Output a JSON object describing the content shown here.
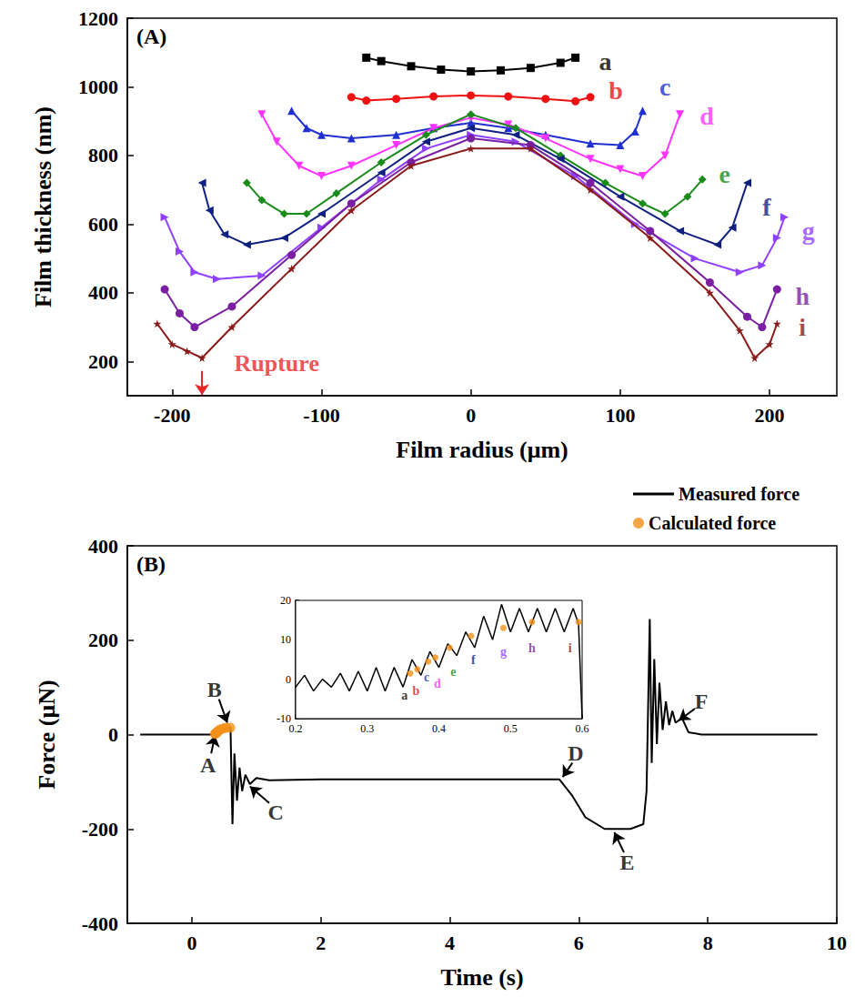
{
  "chart_data": [
    {
      "type": "line",
      "panel_label": "(A)",
      "x_label": "Film radius (μm)",
      "y_label": "Film thickness (nm)",
      "xlim": [
        -230,
        245
      ],
      "xticks": [
        -200,
        -100,
        0,
        100,
        200
      ],
      "ylim": [
        100,
        1200
      ],
      "yticks": [
        200,
        400,
        600,
        800,
        1000,
        1200
      ],
      "grid": false,
      "series": [
        {
          "name": "a",
          "color": "#000000",
          "marker": "square",
          "line_style": "solid",
          "x": [
            -70,
            -60,
            -40,
            -20,
            0,
            20,
            40,
            60,
            70
          ],
          "values": [
            1085,
            1075,
            1060,
            1050,
            1045,
            1048,
            1055,
            1070,
            1085
          ],
          "label_position": [
            90,
            1075
          ]
        },
        {
          "name": "b",
          "color": "#ee1111",
          "marker": "circle",
          "line_style": "solid",
          "x": [
            -80,
            -70,
            -50,
            -25,
            0,
            25,
            50,
            70,
            80
          ],
          "values": [
            970,
            960,
            965,
            972,
            975,
            972,
            965,
            958,
            970
          ],
          "label_position": [
            97,
            990
          ]
        },
        {
          "name": "c",
          "color": "#2030d0",
          "marker": "triangle",
          "line_style": "solid",
          "x": [
            -120,
            -110,
            -100,
            -80,
            -50,
            -25,
            0,
            25,
            50,
            80,
            100,
            110,
            115
          ],
          "values": [
            930,
            880,
            860,
            850,
            860,
            880,
            895,
            880,
            860,
            835,
            830,
            870,
            930
          ],
          "label_position": [
            130,
            1000
          ]
        },
        {
          "name": "d",
          "color": "#ff33ff",
          "marker": "triangle-down",
          "line_style": "solid",
          "x": [
            -140,
            -130,
            -115,
            -100,
            -80,
            -50,
            -25,
            0,
            25,
            50,
            80,
            100,
            115,
            130,
            140
          ],
          "values": [
            920,
            840,
            770,
            740,
            770,
            830,
            880,
            910,
            890,
            850,
            790,
            760,
            740,
            800,
            920
          ],
          "label_position": [
            158,
            915
          ]
        },
        {
          "name": "e",
          "color": "#1a8a1a",
          "marker": "diamond",
          "line_style": "solid",
          "x": [
            -150,
            -140,
            -125,
            -110,
            -90,
            -60,
            -30,
            0,
            30,
            60,
            90,
            115,
            130,
            145,
            155
          ],
          "values": [
            720,
            670,
            630,
            630,
            690,
            780,
            860,
            920,
            880,
            800,
            720,
            660,
            630,
            680,
            730
          ],
          "label_position": [
            170,
            745
          ]
        },
        {
          "name": "f",
          "color": "#102080",
          "marker": "triangle-left",
          "line_style": "solid",
          "x": [
            -180,
            -175,
            -165,
            -150,
            -125,
            -100,
            -60,
            -30,
            0,
            30,
            60,
            100,
            140,
            165,
            175,
            185
          ],
          "values": [
            720,
            640,
            570,
            540,
            560,
            630,
            750,
            840,
            880,
            860,
            790,
            680,
            580,
            540,
            590,
            720
          ],
          "label_position": [
            198,
            650
          ]
        },
        {
          "name": "g",
          "color": "#9040ff",
          "marker": "triangle-right",
          "line_style": "solid",
          "x": [
            -205,
            -195,
            -185,
            -170,
            -140,
            -100,
            -60,
            -30,
            0,
            30,
            70,
            110,
            150,
            180,
            195,
            205,
            210
          ],
          "values": [
            620,
            520,
            460,
            440,
            450,
            590,
            730,
            820,
            860,
            840,
            740,
            600,
            500,
            460,
            480,
            560,
            620
          ],
          "label_position": [
            226,
            580
          ]
        },
        {
          "name": "h",
          "color": "#7b1fa2",
          "marker": "circle",
          "line_style": "solid",
          "x": [
            -205,
            -195,
            -185,
            -160,
            -120,
            -80,
            -40,
            0,
            40,
            80,
            120,
            160,
            185,
            195,
            205
          ],
          "values": [
            410,
            340,
            300,
            360,
            510,
            660,
            780,
            850,
            830,
            720,
            580,
            430,
            330,
            300,
            410
          ],
          "label_position": [
            222,
            390
          ]
        },
        {
          "name": "i",
          "color": "#8b1a1a",
          "marker": "star",
          "line_style": "solid",
          "x": [
            -210,
            -200,
            -190,
            -180,
            -160,
            -120,
            -80,
            -40,
            0,
            40,
            80,
            120,
            160,
            180,
            190,
            200,
            205
          ],
          "values": [
            310,
            250,
            230,
            210,
            300,
            470,
            640,
            770,
            820,
            820,
            700,
            560,
            400,
            290,
            210,
            250,
            310
          ],
          "label_position": [
            222,
            300
          ]
        }
      ],
      "annotations": [
        {
          "text": "Rupture",
          "color": "#e8262a",
          "x": -130,
          "y": 195,
          "arrow_from": [
            -180,
            172
          ],
          "arrow_to": [
            -180,
            102
          ]
        }
      ]
    },
    {
      "type": "line",
      "panel_label": "(B)",
      "x_label": "Time (s)",
      "y_label": "Force (μN)",
      "xlim": [
        -1,
        10
      ],
      "xticks": [
        0,
        2,
        4,
        6,
        8,
        10
      ],
      "ylim": [
        -400,
        400
      ],
      "yticks": [
        -400,
        -200,
        0,
        200,
        400
      ],
      "grid": false,
      "legend": "top-right",
      "series": [
        {
          "name": "Measured force",
          "type": "line",
          "color": "#000000",
          "line_style": "solid",
          "x": [
            -0.8,
            0,
            0.3,
            0.4,
            0.5,
            0.6,
            0.61,
            0.63,
            0.66,
            0.7,
            0.74,
            0.78,
            0.83,
            0.9,
            1.0,
            1.2,
            2,
            4,
            5.7,
            5.9,
            6.1,
            6.4,
            6.8,
            7.0,
            7.05,
            7.1,
            7.13,
            7.17,
            7.21,
            7.25,
            7.3,
            7.35,
            7.4,
            7.45,
            7.5,
            7.6,
            7.7,
            7.9,
            9.7
          ],
          "values": [
            0,
            0,
            0,
            3,
            10,
            15,
            -60,
            -190,
            -40,
            -140,
            -70,
            -120,
            -85,
            -105,
            -92,
            -97,
            -95,
            -95,
            -95,
            -130,
            -175,
            -200,
            -200,
            -190,
            -120,
            245,
            -60,
            160,
            -20,
            110,
            10,
            70,
            20,
            50,
            25,
            35,
            5,
            0,
            0
          ]
        },
        {
          "name": "Calculated force",
          "type": "scatter",
          "color": "#f39019",
          "marker": "circle",
          "x": [
            0.36,
            0.37,
            0.385,
            0.395,
            0.415,
            0.445,
            0.49,
            0.53,
            0.595
          ],
          "values": [
            1.5,
            2.5,
            4.5,
            5.5,
            8,
            11,
            13,
            14.5,
            14.5
          ]
        }
      ],
      "annotations": [
        {
          "text": "A",
          "x": 0.25,
          "y": -65,
          "arrow_from": [
            0.3,
            -40
          ],
          "arrow_to": [
            0.36,
            -2
          ]
        },
        {
          "text": "B",
          "x": 0.35,
          "y": 95,
          "arrow_from": [
            0.42,
            75
          ],
          "arrow_to": [
            0.55,
            25
          ]
        },
        {
          "text": "C",
          "x": 1.3,
          "y": -165,
          "arrow_from": [
            1.2,
            -145
          ],
          "arrow_to": [
            0.9,
            -110
          ]
        },
        {
          "text": "D",
          "x": 5.95,
          "y": -40,
          "arrow_from": [
            5.9,
            -60
          ],
          "arrow_to": [
            5.75,
            -90
          ]
        },
        {
          "text": "E",
          "x": 6.75,
          "y": -270,
          "arrow_from": [
            6.7,
            -250
          ],
          "arrow_to": [
            6.55,
            -207
          ]
        },
        {
          "text": "F",
          "x": 7.9,
          "y": 70,
          "arrow_from": [
            7.8,
            55
          ],
          "arrow_to": [
            7.55,
            30
          ]
        }
      ]
    },
    {
      "type": "line",
      "xlim": [
        0.2,
        0.6
      ],
      "xticks": [
        0.2,
        0.3,
        0.4,
        0.5,
        0.6
      ],
      "ylim": [
        -10,
        20
      ],
      "yticks": [
        -10,
        0,
        10,
        20
      ],
      "grid": false,
      "series": [
        {
          "name": "Measured force",
          "type": "line",
          "color": "#000000",
          "line_style": "solid",
          "x": [
            0.2,
            0.2125,
            0.225,
            0.2375,
            0.25,
            0.2625,
            0.275,
            0.2875,
            0.3,
            0.3125,
            0.325,
            0.3375,
            0.35,
            0.3625,
            0.375,
            0.3875,
            0.4,
            0.4125,
            0.425,
            0.4375,
            0.45,
            0.4625,
            0.475,
            0.4875,
            0.5,
            0.5125,
            0.525,
            0.5375,
            0.55,
            0.5625,
            0.575,
            0.5875,
            0.595,
            0.6
          ],
          "values": [
            -2,
            1,
            -3,
            0,
            -2,
            1.5,
            -3,
            2,
            -3,
            3,
            -3,
            3,
            -2,
            5,
            1,
            7,
            3,
            9,
            6,
            12,
            8,
            16,
            10,
            19,
            12,
            18,
            12,
            18,
            12,
            18,
            12,
            18,
            14,
            -10
          ]
        },
        {
          "name": "Calculated force",
          "type": "scatter",
          "color": "#f39019",
          "marker": "circle",
          "x": [
            0.36,
            0.37,
            0.385,
            0.395,
            0.415,
            0.445,
            0.49,
            0.53,
            0.595
          ],
          "values": [
            1.5,
            2.5,
            4.5,
            5.5,
            8,
            11,
            13,
            14.5,
            14.5
          ],
          "point_labels": [
            "a",
            "b",
            "c",
            "d",
            "e",
            "f",
            "g",
            "h",
            "i"
          ],
          "label_colors": [
            "#000000",
            "#ee1111",
            "#2030d0",
            "#ff33ff",
            "#1a8a1a",
            "#102080",
            "#9040ff",
            "#7b1fa2",
            "#8b1a1a"
          ],
          "label_positions": [
            [
              0.352,
              -4
            ],
            [
              0.368,
              -3
            ],
            [
              0.383,
              0.5
            ],
            [
              0.398,
              -1
            ],
            [
              0.42,
              2
            ],
            [
              0.448,
              5
            ],
            [
              0.49,
              7
            ],
            [
              0.53,
              8
            ],
            [
              0.583,
              8
            ]
          ]
        }
      ]
    }
  ]
}
